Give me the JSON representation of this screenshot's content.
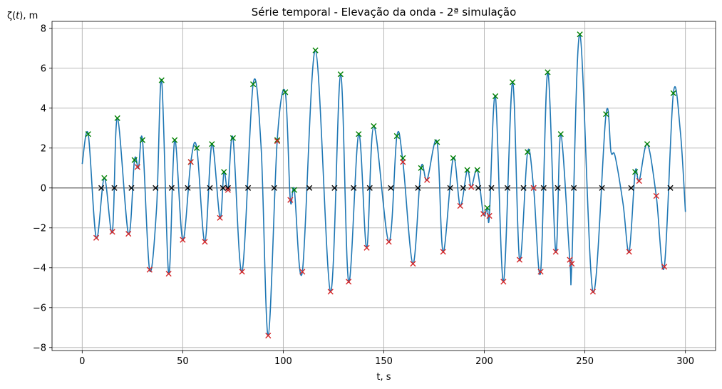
{
  "chart_data": {
    "type": "line",
    "title": "Série temporal - Elevação da onda - 2ª simulação",
    "xlabel": "t, s",
    "ylabel_prefix": "ζ(",
    "ylabel_var": "t",
    "ylabel_suffix": "), m",
    "xlim": [
      -15,
      315
    ],
    "ylim": [
      -8.15,
      8.35
    ],
    "xticks": [
      0,
      50,
      100,
      150,
      200,
      250,
      300
    ],
    "yticks": [
      -8,
      -6,
      -4,
      -2,
      0,
      2,
      4,
      6,
      8
    ],
    "grid": true,
    "colors": {
      "series": "#1f77b4",
      "maxima": "#008000",
      "minima": "#d62728",
      "zero_crossings": "#000000",
      "zero_line": "#808080",
      "grid": "#b0b0b0"
    },
    "series": [
      {
        "x": [
          0,
          3,
          7,
          11,
          15,
          17.5,
          23,
          26,
          28,
          30,
          33.5,
          37,
          39.5,
          43,
          46,
          50,
          54,
          57,
          61,
          64.5,
          68.5,
          70.5,
          72.5,
          75,
          79.5,
          85,
          89,
          92.5,
          97,
          101,
          103.5,
          105.5,
          109.5,
          116,
          123.5,
          128.5,
          132.5,
          137.5,
          141.5,
          145,
          152.5,
          156.5,
          159.5,
          164.5,
          168.5,
          171.5,
          176.5,
          179.5,
          184.5,
          188,
          191.5,
          193.5,
          196.5,
          199.5,
          201.5,
          202.5,
          205.5,
          209.5,
          214,
          217.5,
          221.5,
          224.5,
          228,
          231.5,
          235.5,
          238,
          242.5,
          243.5,
          247.5,
          254,
          260.5,
          263,
          265,
          269,
          272,
          275,
          277,
          281,
          285.5,
          289.5,
          294,
          297.5,
          300
        ],
        "y": [
          1.2,
          2.7,
          -2.5,
          0.5,
          -2.2,
          3.5,
          -2.3,
          1.4,
          1.0,
          2.4,
          -4.1,
          -1.0,
          5.4,
          -4.3,
          2.4,
          -2.6,
          1.3,
          2.0,
          -2.7,
          2.2,
          -1.5,
          0.8,
          -0.1,
          2.5,
          -4.2,
          5.2,
          2.0,
          -7.4,
          2.4,
          4.8,
          -0.6,
          -0.1,
          -4.2,
          6.9,
          -5.2,
          5.7,
          -4.7,
          2.7,
          -3.0,
          3.1,
          -2.7,
          2.6,
          1.3,
          -3.8,
          1.0,
          0.4,
          2.3,
          -3.2,
          1.5,
          -0.9,
          0.9,
          0.05,
          0.9,
          -1.3,
          -1.0,
          -1.4,
          4.6,
          -4.7,
          5.3,
          -3.6,
          1.8,
          0.0,
          -4.2,
          5.8,
          -3.2,
          2.7,
          -3.6,
          -3.8,
          7.7,
          -5.2,
          3.7,
          1.8,
          1.6,
          -0.8,
          -3.2,
          0.8,
          0.35,
          2.2,
          -0.4,
          -3.95,
          4.75,
          2.8,
          -1.2
        ]
      }
    ],
    "maxima": {
      "x": [
        3,
        11,
        17.5,
        26,
        30,
        39.5,
        46,
        54,
        57,
        64.5,
        70.5,
        75,
        85,
        97,
        101,
        105.5,
        116,
        128.5,
        137.5,
        145,
        156.5,
        159.5,
        168.5,
        176.5,
        184.5,
        191.5,
        196.5,
        201.5,
        205.5,
        214,
        221.5,
        231.5,
        238,
        247.5,
        260.5,
        275,
        281,
        294
      ],
      "y": [
        2.7,
        0.5,
        3.5,
        1.4,
        2.4,
        5.4,
        2.4,
        1.3,
        2.0,
        2.2,
        0.8,
        2.5,
        5.2,
        2.4,
        4.8,
        -0.1,
        6.9,
        5.7,
        2.7,
        3.1,
        2.6,
        1.5,
        1.0,
        2.3,
        1.5,
        0.9,
        0.9,
        -1.0,
        4.6,
        5.3,
        1.8,
        5.8,
        2.7,
        7.7,
        3.7,
        0.8,
        2.2,
        4.75
      ]
    },
    "minima": {
      "x": [
        7,
        15,
        23,
        27.5,
        33.5,
        43,
        50,
        54,
        61,
        68.5,
        72.5,
        79.5,
        92.5,
        97,
        103.5,
        109.5,
        123.5,
        132.5,
        141.5,
        152.5,
        159.5,
        164.5,
        171.5,
        179.5,
        188,
        193.5,
        199.5,
        202.5,
        209.5,
        217.5,
        224.5,
        228,
        235.5,
        242.5,
        243.5,
        254,
        272,
        277,
        285.5,
        289.5
      ],
      "y": [
        -2.5,
        -2.2,
        -2.3,
        1.05,
        -4.1,
        -4.3,
        -2.6,
        1.3,
        -2.7,
        -1.5,
        -0.1,
        -4.2,
        -7.4,
        2.35,
        -0.6,
        -4.2,
        -5.2,
        -4.7,
        -3.0,
        -2.7,
        1.3,
        -3.8,
        0.4,
        -3.2,
        -0.9,
        0.05,
        -1.3,
        -1.4,
        -4.7,
        -3.6,
        0.0,
        -4.2,
        -3.2,
        -3.6,
        -3.8,
        -5.2,
        -3.2,
        0.35,
        -0.4,
        -3.95
      ]
    },
    "zero_crossings": {
      "x": [
        9.5,
        16,
        24.5,
        36.5,
        44.5,
        52.5,
        63.5,
        70,
        72.5,
        82.5,
        95.5,
        113,
        125.5,
        135,
        143,
        153.5,
        167,
        183,
        189.5,
        197,
        203.5,
        211.5,
        219.5,
        224.5,
        229.5,
        236.5,
        244.5,
        258.5,
        273,
        292.5
      ]
    }
  }
}
